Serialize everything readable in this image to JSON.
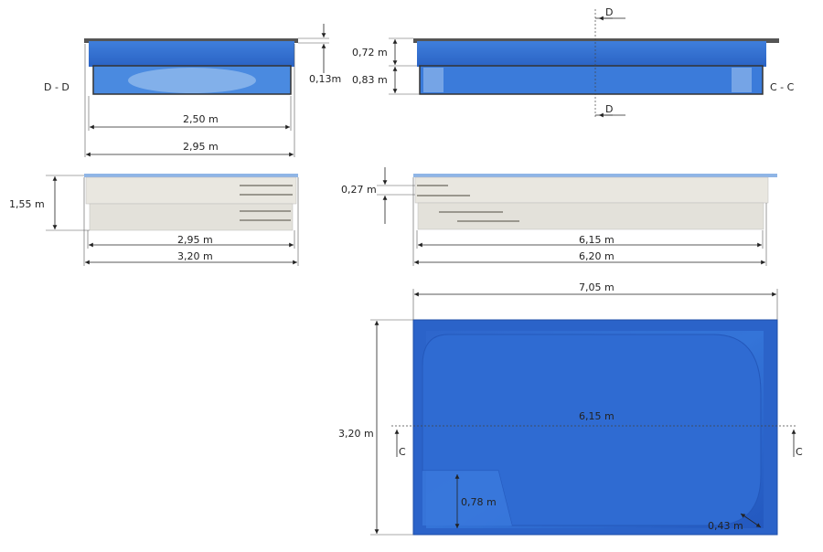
{
  "section_dd": {
    "label": "D - D",
    "inner_width": "2,50 m",
    "outer_width": "2,95 m",
    "rim_height": "0,13m"
  },
  "section_cc": {
    "label": "C - C",
    "upper_depth": "0,72 m",
    "lower_depth": "0,83 m",
    "cut_top": "D",
    "cut_bottom": "D"
  },
  "elevation_side": {
    "height": "1,55 m",
    "inner_width": "2,95 m",
    "outer_width": "3,20 m"
  },
  "elevation_long": {
    "step_height": "0,27 m",
    "inner_length": "6,15 m",
    "outer_length": "6,20 m"
  },
  "plan": {
    "outer_length": "7,05 m",
    "outer_width": "3,20 m",
    "inner_length": "6,15 m",
    "cut_left": "C",
    "cut_right": "C",
    "step_depth": "0,78 m",
    "corner_radius": "0,43 m"
  },
  "colors": {
    "water": "#2f6fd0",
    "water_dark": "#1d55b8",
    "shell": "#e9e7e0",
    "rim": "#555555"
  }
}
